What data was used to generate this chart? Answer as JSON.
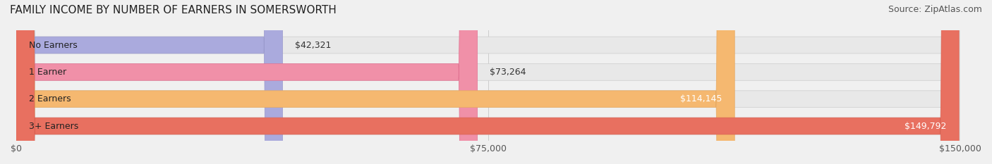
{
  "title": "FAMILY INCOME BY NUMBER OF EARNERS IN SOMERSWORTH",
  "source": "Source: ZipAtlas.com",
  "categories": [
    "No Earners",
    "1 Earner",
    "2 Earners",
    "3+ Earners"
  ],
  "values": [
    42321,
    73264,
    114145,
    149792
  ],
  "max_value": 150000,
  "bar_colors": [
    "#aaaadd",
    "#f090a8",
    "#f5b870",
    "#e87060"
  ],
  "bar_edge_colors": [
    "#9999cc",
    "#e07090",
    "#e5a860",
    "#d86050"
  ],
  "label_colors": [
    "#333333",
    "#333333",
    "#ffffff",
    "#ffffff"
  ],
  "value_labels": [
    "$42,321",
    "$73,264",
    "$114,145",
    "$149,792"
  ],
  "x_ticks": [
    0,
    75000,
    150000
  ],
  "x_tick_labels": [
    "$0",
    "$75,000",
    "$150,000"
  ],
  "background_color": "#f0f0f0",
  "bar_background_color": "#e8e8e8",
  "title_fontsize": 11,
  "source_fontsize": 9,
  "label_fontsize": 9,
  "value_fontsize": 9,
  "tick_fontsize": 9
}
